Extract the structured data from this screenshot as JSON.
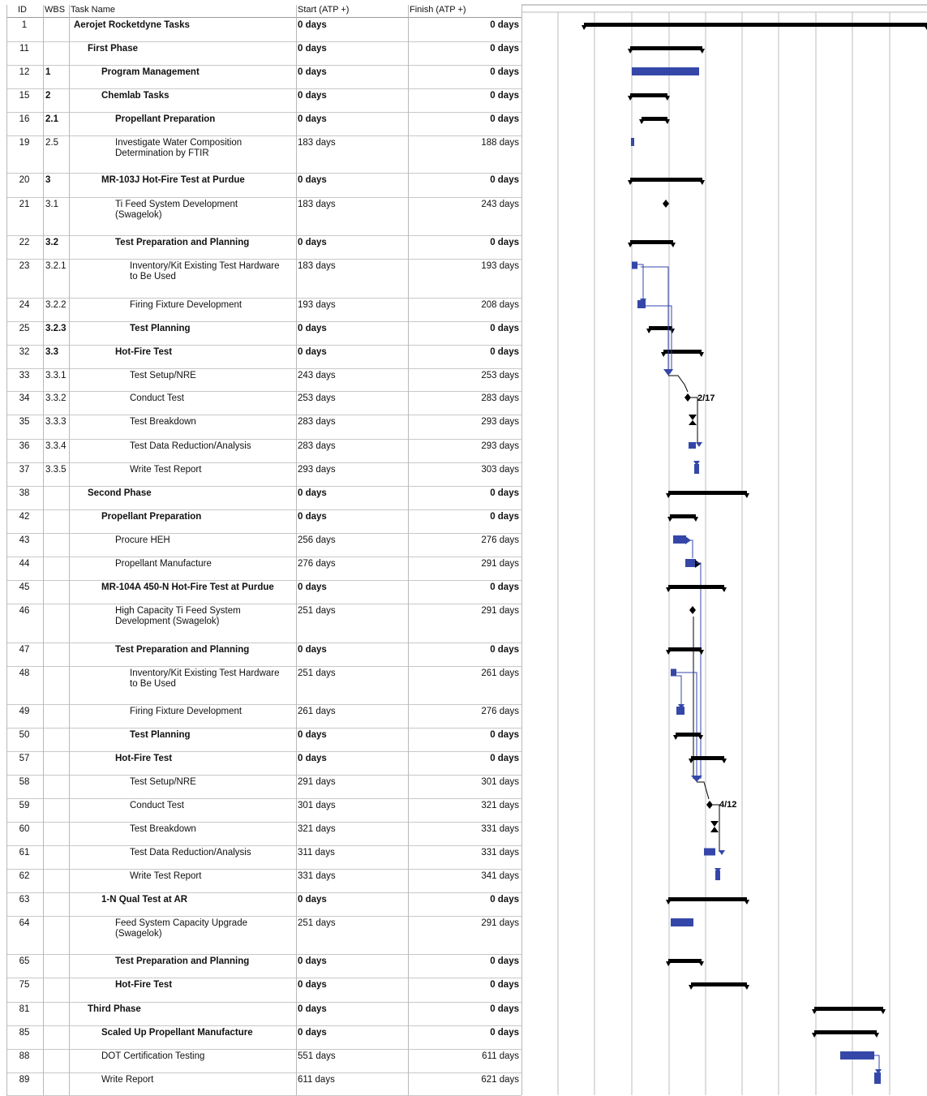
{
  "columns": {
    "id": "ID",
    "wbs": "WBS",
    "name": "Task Name",
    "start": "Start (ATP +)",
    "finish": "Finish (ATP +)"
  },
  "colors": {
    "summary_bar": "#000000",
    "task_bar": "#3447a8",
    "link": "#3447a8",
    "grid": "#bdbdbd"
  },
  "rows": [
    {
      "id": "1",
      "wbs": "",
      "name": "Aerojet Rocketdyne Tasks",
      "start": "0 days",
      "finish": "0 days",
      "bold": true,
      "level": 0
    },
    {
      "id": "11",
      "wbs": "",
      "name": "First Phase",
      "start": "0 days",
      "finish": "0 days",
      "bold": true,
      "level": 1
    },
    {
      "id": "12",
      "wbs": "1",
      "name": "Program Management",
      "start": "0 days",
      "finish": "0 days",
      "bold": true,
      "level": 2
    },
    {
      "id": "15",
      "wbs": "2",
      "name": "Chemlab Tasks",
      "start": "0 days",
      "finish": "0 days",
      "bold": true,
      "level": 2
    },
    {
      "id": "16",
      "wbs": "2.1",
      "name": "Propellant Preparation",
      "start": "0 days",
      "finish": "0 days",
      "bold": true,
      "level": 3
    },
    {
      "id": "19",
      "wbs": "2.5",
      "name": "Investigate Water Composition\nDetermination by FTIR",
      "start": "183 days",
      "finish": "188 days",
      "bold": false,
      "level": 3
    },
    {
      "id": "20",
      "wbs": "3",
      "name": "MR-103J Hot-Fire Test at Purdue",
      "start": "0 days",
      "finish": "0 days",
      "bold": true,
      "level": 2
    },
    {
      "id": "21",
      "wbs": "3.1",
      "name": "Ti Feed System Development\n(Swagelok)",
      "start": "183 days",
      "finish": "243 days",
      "bold": false,
      "level": 3
    },
    {
      "id": "22",
      "wbs": "3.2",
      "name": "Test Preparation and Planning",
      "start": "0 days",
      "finish": "0 days",
      "bold": true,
      "level": 3
    },
    {
      "id": "23",
      "wbs": "3.2.1",
      "name": "Inventory/Kit Existing Test Hardware\nto Be Used",
      "start": "183 days",
      "finish": "193 days",
      "bold": false,
      "level": 4
    },
    {
      "id": "24",
      "wbs": "3.2.2",
      "name": "Firing Fixture Development",
      "start": "193 days",
      "finish": "208 days",
      "bold": false,
      "level": 4
    },
    {
      "id": "25",
      "wbs": "3.2.3",
      "name": "Test Planning",
      "start": "0 days",
      "finish": "0 days",
      "bold": true,
      "level": 4
    },
    {
      "id": "32",
      "wbs": "3.3",
      "name": "Hot-Fire Test",
      "start": "0 days",
      "finish": "0 days",
      "bold": true,
      "level": 3
    },
    {
      "id": "33",
      "wbs": "3.3.1",
      "name": "Test Setup/NRE",
      "start": "243 days",
      "finish": "253 days",
      "bold": false,
      "level": 4
    },
    {
      "id": "34",
      "wbs": "3.3.2",
      "name": "Conduct Test",
      "start": "253 days",
      "finish": "283 days",
      "bold": false,
      "level": 4
    },
    {
      "id": "35",
      "wbs": "3.3.3",
      "name": "Test Breakdown",
      "start": "283 days",
      "finish": "293 days",
      "bold": false,
      "level": 4
    },
    {
      "id": "36",
      "wbs": "3.3.4",
      "name": "Test Data Reduction/Analysis",
      "start": "283 days",
      "finish": "293 days",
      "bold": false,
      "level": 4
    },
    {
      "id": "37",
      "wbs": "3.3.5",
      "name": "Write Test Report",
      "start": "293 days",
      "finish": "303 days",
      "bold": false,
      "level": 4
    },
    {
      "id": "38",
      "wbs": "",
      "name": "Second Phase",
      "start": "0 days",
      "finish": "0 days",
      "bold": true,
      "level": 1
    },
    {
      "id": "42",
      "wbs": "",
      "name": "Propellant Preparation",
      "start": "0 days",
      "finish": "0 days",
      "bold": true,
      "level": 2
    },
    {
      "id": "43",
      "wbs": "",
      "name": "Procure HEH",
      "start": "256 days",
      "finish": "276 days",
      "bold": false,
      "level": 3
    },
    {
      "id": "44",
      "wbs": "",
      "name": "Propellant Manufacture",
      "start": "276 days",
      "finish": "291 days",
      "bold": false,
      "level": 3
    },
    {
      "id": "45",
      "wbs": "",
      "name": "MR-104A 450-N Hot-Fire Test at Purdue",
      "start": "0 days",
      "finish": "0 days",
      "bold": true,
      "level": 2
    },
    {
      "id": "46",
      "wbs": "",
      "name": "High Capacity Ti Feed System\nDevelopment (Swagelok)",
      "start": "251 days",
      "finish": "291 days",
      "bold": false,
      "level": 3
    },
    {
      "id": "47",
      "wbs": "",
      "name": "Test Preparation and Planning",
      "start": "0 days",
      "finish": "0 days",
      "bold": true,
      "level": 3
    },
    {
      "id": "48",
      "wbs": "",
      "name": "Inventory/Kit Existing Test Hardware\nto Be Used",
      "start": "251 days",
      "finish": "261 days",
      "bold": false,
      "level": 4
    },
    {
      "id": "49",
      "wbs": "",
      "name": "Firing Fixture Development",
      "start": "261 days",
      "finish": "276 days",
      "bold": false,
      "level": 4
    },
    {
      "id": "50",
      "wbs": "",
      "name": "Test Planning",
      "start": "0 days",
      "finish": "0 days",
      "bold": true,
      "level": 4
    },
    {
      "id": "57",
      "wbs": "",
      "name": "Hot-Fire Test",
      "start": "0 days",
      "finish": "0 days",
      "bold": true,
      "level": 3
    },
    {
      "id": "58",
      "wbs": "",
      "name": "Test Setup/NRE",
      "start": "291 days",
      "finish": "301 days",
      "bold": false,
      "level": 4
    },
    {
      "id": "59",
      "wbs": "",
      "name": "Conduct Test",
      "start": "301 days",
      "finish": "321 days",
      "bold": false,
      "level": 4
    },
    {
      "id": "60",
      "wbs": "",
      "name": "Test Breakdown",
      "start": "321 days",
      "finish": "331 days",
      "bold": false,
      "level": 4
    },
    {
      "id": "61",
      "wbs": "",
      "name": "Test Data Reduction/Analysis",
      "start": "311 days",
      "finish": "331 days",
      "bold": false,
      "level": 4
    },
    {
      "id": "62",
      "wbs": "",
      "name": "Write Test Report",
      "start": "331 days",
      "finish": "341 days",
      "bold": false,
      "level": 4
    },
    {
      "id": "63",
      "wbs": "",
      "name": "1-N Qual Test at AR",
      "start": "0 days",
      "finish": "0 days",
      "bold": true,
      "level": 2
    },
    {
      "id": "64",
      "wbs": "",
      "name": "Feed System Capacity Upgrade\n(Swagelok)",
      "start": "251 days",
      "finish": "291 days",
      "bold": false,
      "level": 3
    },
    {
      "id": "65",
      "wbs": "",
      "name": "Test Preparation and Planning",
      "start": "0 days",
      "finish": "0 days",
      "bold": true,
      "level": 3
    },
    {
      "id": "75",
      "wbs": "",
      "name": "Hot-Fire Test",
      "start": "0 days",
      "finish": "0 days",
      "bold": true,
      "level": 3
    },
    {
      "id": "81",
      "wbs": "",
      "name": "Third Phase",
      "start": "0 days",
      "finish": "0 days",
      "bold": true,
      "level": 1
    },
    {
      "id": "85",
      "wbs": "",
      "name": "Scaled Up Propellant Manufacture",
      "start": "0 days",
      "finish": "0 days",
      "bold": true,
      "level": 2
    },
    {
      "id": "88",
      "wbs": "",
      "name": "DOT Certification Testing",
      "start": "551 days",
      "finish": "611 days",
      "bold": false,
      "level": 2
    },
    {
      "id": "89",
      "wbs": "",
      "name": "Write Report",
      "start": "611 days",
      "finish": "621 days",
      "bold": false,
      "level": 2
    }
  ],
  "milestone_labels": {
    "row34": "2/17",
    "row59": "4/12"
  }
}
